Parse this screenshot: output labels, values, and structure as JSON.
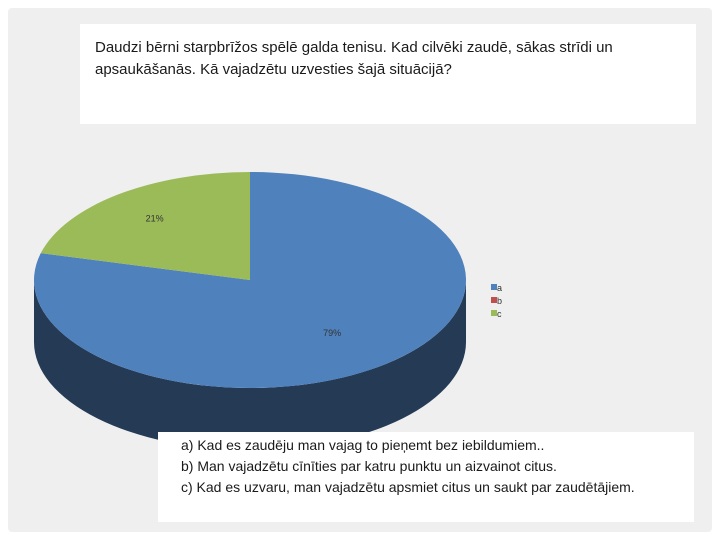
{
  "slide": {
    "title": "Daudzi bērni starpbrīžos spēlē galda tenisu. Kad cilvēki zaudē, sākas strīdi un apsaukāšanās. Kā vajadzētu uzvesties šajā situācijā?",
    "answers": [
      "a) Kad es zaudēju man vajag to pieņemt bez iebildumiem..",
      "b) Man vajadzētu cīnīties par katru punktu un aizvainot citus.",
      "c) Kad es uzvaru, man vajadzētu apsmiet citus un saukt par zaudētājiem."
    ]
  },
  "chart_data": {
    "type": "pie",
    "variant": "3d",
    "categories": [
      "a",
      "b",
      "c"
    ],
    "values": [
      79,
      0,
      21
    ],
    "data_labels": [
      "79%",
      "",
      "21%"
    ],
    "colors": [
      "#4f81bd",
      "#c0504d",
      "#9bbb59"
    ],
    "legend_position": "right"
  }
}
